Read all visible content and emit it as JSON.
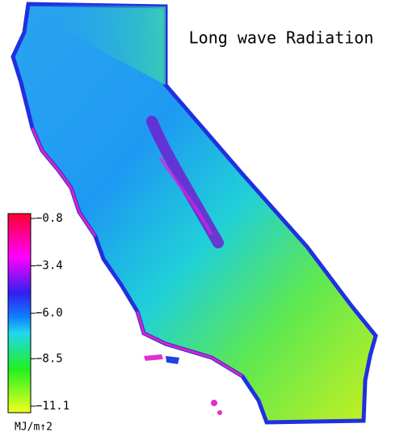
{
  "title": "Long wave Radiation",
  "colorbar": {
    "lim": [
      -11.1,
      -0.8
    ],
    "ticks": [
      {
        "value": -0.8,
        "label": "−0.8"
      },
      {
        "value": -3.4,
        "label": "−3.4"
      },
      {
        "value": -6.0,
        "label": "−6.0"
      },
      {
        "value": -8.5,
        "label": "−8.5"
      },
      {
        "value": -11.1,
        "label": "−11.1"
      }
    ],
    "unit": "MJ/m↑2"
  }
}
